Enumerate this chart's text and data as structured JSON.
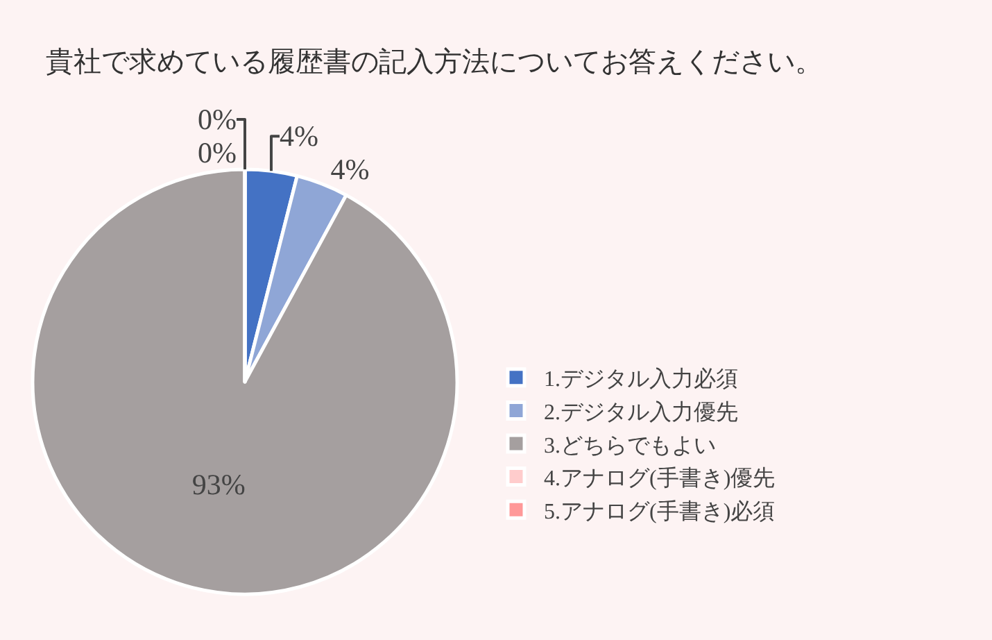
{
  "chart_data": {
    "type": "pie",
    "title": "貴社で求めている履歴書の記入方法についてお答えください。",
    "categories": [
      "1.デジタル入力必須",
      "2.デジタル入力優先",
      "3.どちらでもよい",
      "4.アナログ(手書き)優先",
      "5.アナログ(手書き)必須"
    ],
    "values": [
      4,
      4,
      93,
      0,
      0
    ],
    "value_labels": [
      "4%",
      "4%",
      "93%",
      "0%",
      "0%"
    ],
    "colors": [
      "#4472c4",
      "#8fa6d6",
      "#a59f9f",
      "#ffcccc",
      "#ff9999"
    ],
    "legend": "right"
  }
}
